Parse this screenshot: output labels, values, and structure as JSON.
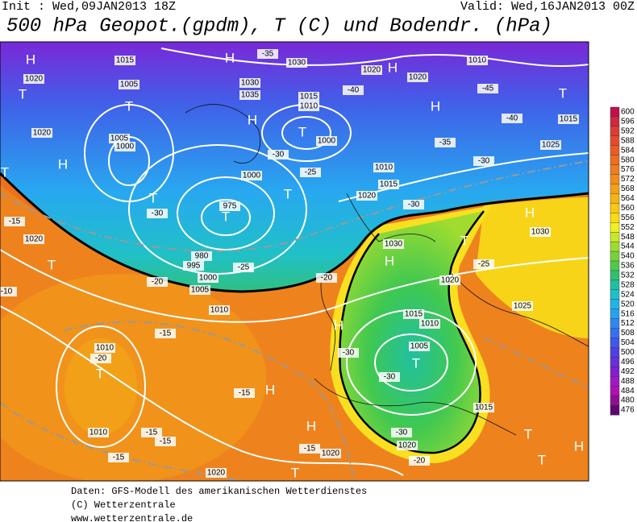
{
  "header": {
    "init": "Init : Wed,09JAN2013 18Z",
    "valid": "Valid: Wed,16JAN2013 00Z",
    "title": "500 hPa Geopot.(gpdm), T (C) und Bodendr. (hPa)"
  },
  "map_labels": [
    "H",
    "1020",
    "T",
    "1020",
    "H",
    "T",
    "-15",
    "1020",
    "T",
    "-10",
    "1010",
    "-20",
    "T",
    "1010",
    "T",
    "1005",
    "1015",
    "1005",
    "1000",
    "T",
    "-30",
    "T",
    "975",
    "980",
    "995",
    "1000",
    "1005",
    "1010",
    "-20",
    "-25",
    "H",
    "1030",
    "1035",
    "H",
    "-35",
    "1030",
    "1015",
    "1010",
    "T",
    "1000",
    "-30",
    "1000",
    "-25",
    "T",
    "H",
    "1020",
    "1020",
    "-40",
    "H",
    "1010",
    "-45",
    "1015",
    "T",
    "-40",
    "-35",
    "1025",
    "-30",
    "1010",
    "1015",
    "1020",
    "-30",
    "H",
    "1030",
    "T",
    "-25",
    "1030",
    "H",
    "1020",
    "1025",
    "-20",
    "H",
    "1015",
    "1010",
    "-30",
    "1005",
    "T",
    "-30",
    "-15",
    "H",
    "-15",
    "H",
    "1020",
    "-30",
    "1020",
    "-20",
    "-15",
    "-15",
    "-15",
    "1020",
    "T",
    "-15",
    "1015",
    "T",
    "T",
    "H"
  ],
  "colorbar": {
    "levels": [
      600,
      596,
      592,
      588,
      584,
      580,
      576,
      572,
      568,
      564,
      560,
      556,
      552,
      548,
      544,
      540,
      536,
      532,
      528,
      524,
      520,
      516,
      512,
      508,
      504,
      500,
      496,
      492,
      488,
      484,
      480,
      476
    ],
    "colors": [
      "#c0104a",
      "#d02840",
      "#dc3c34",
      "#e44c2c",
      "#ea5c24",
      "#ee6c20",
      "#f07c20",
      "#f28c1c",
      "#f4a018",
      "#f6b414",
      "#f8c814",
      "#f8dc10",
      "#f0f020",
      "#c8e828",
      "#a0dc30",
      "#78d03c",
      "#50c84c",
      "#30c070",
      "#20c0a0",
      "#20c0c8",
      "#20b4e8",
      "#28a0f0",
      "#3088f0",
      "#3870f0",
      "#4058e8",
      "#5040e0",
      "#6830d8",
      "#8020d0",
      "#a018c8",
      "#b010b0",
      "#901090",
      "#600870"
    ]
  },
  "footer": [
    "Daten: GFS-Modell des amerikanischen Wetterdienstes",
    "(C) Wetterzentrale",
    "www.wetterzentrale.de"
  ]
}
